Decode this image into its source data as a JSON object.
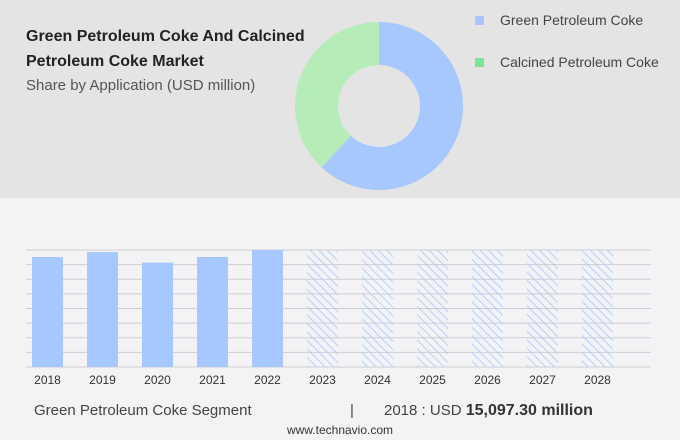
{
  "chart_data": [
    {
      "type": "pie",
      "donut": true,
      "title": "Green Petroleum Coke And Calcined Petroleum Coke Market",
      "subtitle": "Share by Application (USD million)",
      "legend": "top-right",
      "series": [
        {
          "name": "Green Petroleum Coke",
          "share": 62,
          "color": "#a6c8ff"
        },
        {
          "name": "Calcined Petroleum Coke",
          "share": 38,
          "color": "#b6ecb8"
        }
      ],
      "legend_colors": [
        "#a6c8ff",
        "#7de39a"
      ]
    },
    {
      "type": "bar",
      "categories": [
        "2018",
        "2019",
        "2020",
        "2021",
        "2022",
        "2023",
        "2024",
        "2025",
        "2026",
        "2027",
        "2028"
      ],
      "values": [
        15097.3,
        15780,
        14330,
        15097.3,
        16060,
        null,
        null,
        null,
        null,
        null,
        null
      ],
      "forecast": [
        "2023",
        "2024",
        "2025",
        "2026",
        "2027",
        "2028"
      ],
      "ylim": [
        0,
        16060
      ],
      "grid": true,
      "color": "#a6c8ff"
    }
  ],
  "footer": {
    "segment": "Green Petroleum Coke Segment",
    "separator": "|",
    "year_label": "2018 : USD",
    "value": "15,097.30 million",
    "url": "www.technavio.com"
  }
}
